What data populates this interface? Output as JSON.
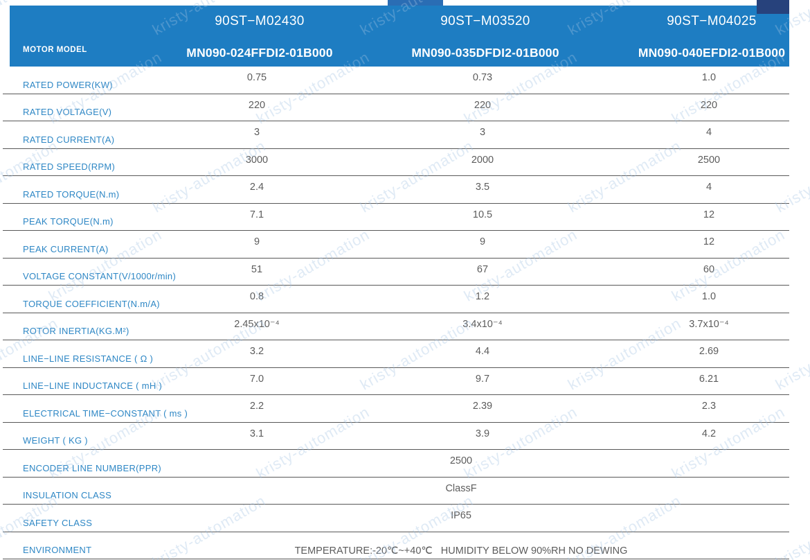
{
  "watermark": {
    "text": "kristy-automation"
  },
  "colors": {
    "header_bg": "#1e7dc2",
    "label_text": "#2e87c5",
    "value_text": "#5c5c5c",
    "row_line": "#585858"
  },
  "header": {
    "row_label": "MOTOR MODEL",
    "columns": [
      {
        "model": "90ST−M02430",
        "part_number": "MN090-024FFDI2-01B000"
      },
      {
        "model": "90ST−M03520",
        "part_number": "MN090-035DFDI2-01B000"
      },
      {
        "model": "90ST−M04025",
        "part_number": "MN090-040EFDI2-01B000"
      }
    ]
  },
  "specs": [
    {
      "label": "RATED POWER(KW)",
      "values": [
        "0.75",
        "0.73",
        "1.0"
      ]
    },
    {
      "label": "RATED VOLTAGE(V)",
      "values": [
        "220",
        "220",
        "220"
      ]
    },
    {
      "label": "RATED CURRENT(A)",
      "values": [
        "3",
        "3",
        "4"
      ]
    },
    {
      "label": "RATED SPEED(RPM)",
      "values": [
        "3000",
        "2000",
        "2500"
      ]
    },
    {
      "label": "RATED TORQUE(N.m)",
      "values": [
        "2.4",
        "3.5",
        "4"
      ]
    },
    {
      "label": "PEAK TORQUE(N.m)",
      "values": [
        "7.1",
        "10.5",
        "12"
      ]
    },
    {
      "label": "PEAK CURRENT(A)",
      "values": [
        "9",
        "9",
        "12"
      ]
    },
    {
      "label": "VOLTAGE CONSTANT(V/1000r/min)",
      "values": [
        "51",
        "67",
        "60"
      ]
    },
    {
      "label": "TORQUE COEFFICIENT(N.m/A)",
      "values": [
        "0.8",
        "1.2",
        "1.0"
      ]
    },
    {
      "label": "ROTOR INERTIA(KG.M²)",
      "values": [
        "2.45x10⁻⁴",
        "3.4x10⁻⁴",
        "3.7x10⁻⁴"
      ]
    },
    {
      "label": "LINE−LINE RESISTANCE ( Ω )",
      "values": [
        "3.2",
        "4.4",
        "2.69"
      ]
    },
    {
      "label": "LINE−LINE INDUCTANCE ( mH )",
      "values": [
        "7.0",
        "9.7",
        "6.21"
      ]
    },
    {
      "label": "ELECTRICAL TIME−CONSTANT ( ms )",
      "values": [
        "2.2",
        "2.39",
        "2.3"
      ]
    },
    {
      "label": "WEIGHT ( KG )",
      "values": [
        "3.1",
        "3.9",
        "4.2"
      ]
    },
    {
      "label": "ENCODER LINE NUMBER(PPR)",
      "span_value": "2500"
    },
    {
      "label": "INSULATION CLASS",
      "span_value": "ClassF"
    },
    {
      "label": "SAFETY CLASS",
      "span_value": "IP65"
    },
    {
      "label": "ENVIRONMENT",
      "span_value": "TEMPERATURE:-20℃~+40℃   HUMIDITY BELOW 90%RH NO DEWING",
      "align": "bottom"
    }
  ]
}
